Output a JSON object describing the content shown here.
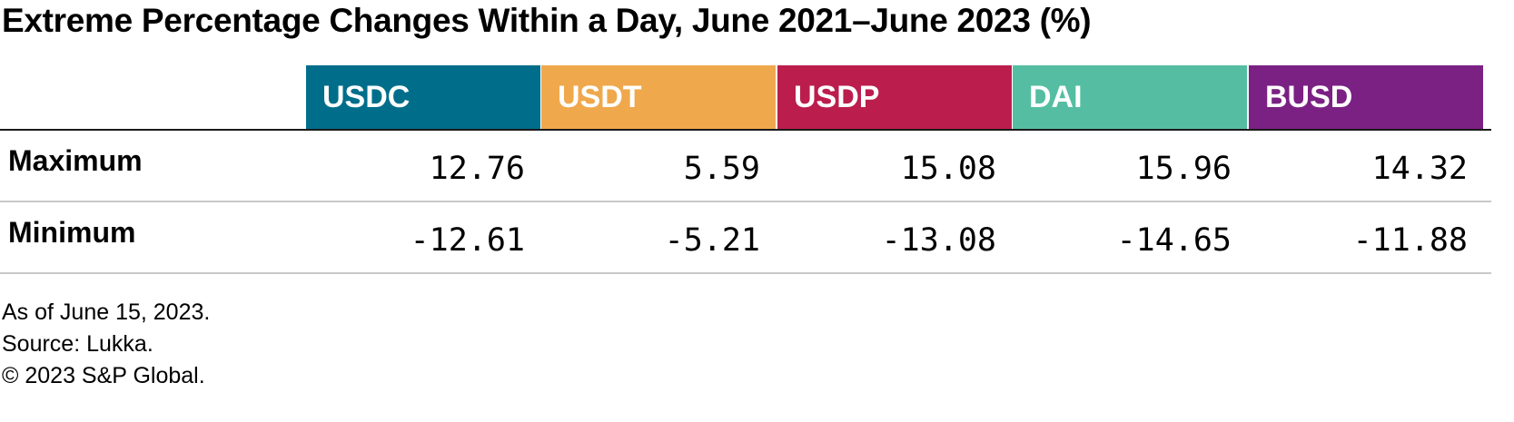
{
  "title": "Extreme Percentage Changes Within a Day, June 2021–June 2023 (%)",
  "chart_data": {
    "type": "table",
    "title": "Extreme Percentage Changes Within a Day, June 2021–June 2023 (%)",
    "columns": [
      {
        "name": "USDC",
        "color": "#006e8a"
      },
      {
        "name": "USDT",
        "color": "#f0a84c"
      },
      {
        "name": "USDP",
        "color": "#bb1e4c"
      },
      {
        "name": "DAI",
        "color": "#55bea2"
      },
      {
        "name": "BUSD",
        "color": "#7a2183"
      }
    ],
    "rows": [
      {
        "label": "Maximum",
        "values": [
          "12.76",
          "5.59",
          "15.08",
          "15.96",
          "14.32"
        ]
      },
      {
        "label": "Minimum",
        "values": [
          "-12.61",
          "-5.21",
          "-13.08",
          "-14.65",
          "-11.88"
        ]
      }
    ]
  },
  "footnotes": [
    "As of June 15, 2023.",
    "Source: Lukka.",
    "© 2023 S&P Global."
  ]
}
